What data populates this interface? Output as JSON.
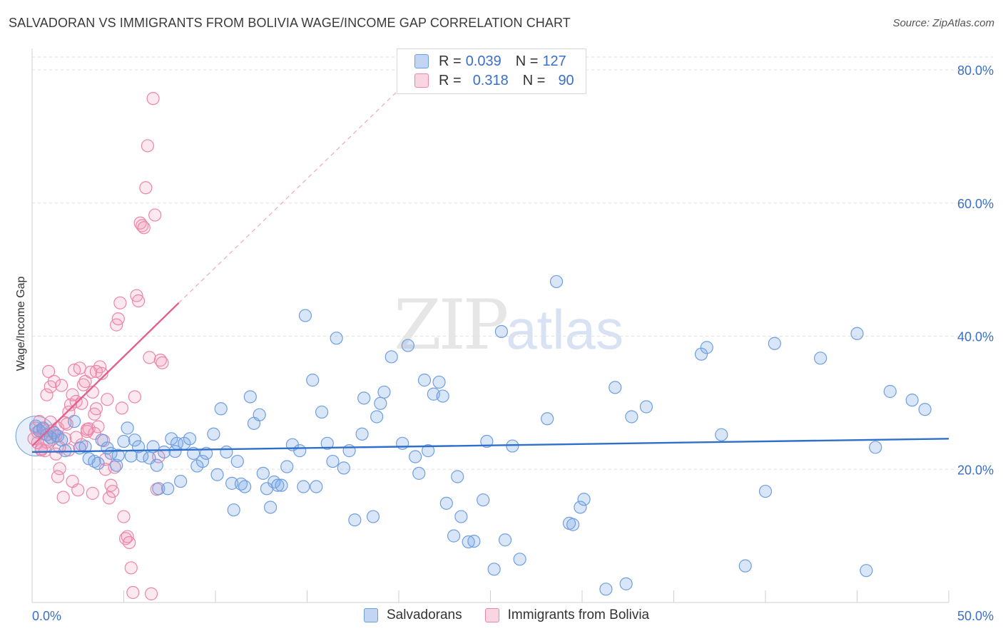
{
  "title": "SALVADORAN VS IMMIGRANTS FROM BOLIVIA WAGE/INCOME GAP CORRELATION CHART",
  "source": "Source: ZipAtlas.com",
  "watermark": {
    "zip": "ZIP",
    "atlas": "atlas"
  },
  "colors": {
    "blue": "#6f9ee0",
    "blue_fill": "rgba(120,165,230,0.28)",
    "blue_line": "#2f6fcc",
    "pink": "#ec85a8",
    "pink_fill": "rgba(240,150,180,0.22)",
    "pink_line": "#e0608f",
    "axis_text": "#3a6fc9",
    "grid": "#e2e2e2"
  },
  "legend_top": {
    "rows": [
      {
        "r_label": "R =",
        "r_value": "0.039",
        "n_label": "N =",
        "n_value": "127"
      },
      {
        "r_label": "R =",
        "r_value": "0.318",
        "n_label": "N =",
        "n_value": "90"
      }
    ]
  },
  "legend_bottom": [
    "Salvadorans",
    "Immigrants from Bolivia"
  ],
  "chart_data": {
    "type": "scatter",
    "title": "SALVADORAN VS IMMIGRANTS FROM BOLIVIA WAGE/INCOME GAP CORRELATION CHART",
    "xlabel": "",
    "ylabel": "Wage/Income Gap",
    "xlim": [
      0,
      50
    ],
    "ylim": [
      0,
      80
    ],
    "x_tick_labels": [
      "0.0%",
      "50.0%"
    ],
    "y_tick_labels": [
      "20.0%",
      "40.0%",
      "60.0%",
      "80.0%"
    ],
    "y_ticks": [
      20,
      40,
      60,
      80
    ],
    "grid": true,
    "legend": "top-center",
    "series": [
      {
        "name": "Salvadorans",
        "R": 0.039,
        "N": 127,
        "trend": {
          "x": [
            0,
            50
          ],
          "y": [
            22.6,
            24.6
          ]
        },
        "points": [
          [
            0.2,
            26.5
          ],
          [
            0.4,
            25.8
          ],
          [
            0.6,
            26.2
          ],
          [
            0.8,
            25.2
          ],
          [
            1.0,
            24.8
          ],
          [
            1.2,
            25.5
          ],
          [
            1.4,
            25.0
          ],
          [
            1.6,
            24.4
          ],
          [
            1.8,
            22.8
          ],
          [
            2.3,
            27.2
          ],
          [
            2.6,
            23.2
          ],
          [
            2.9,
            23.4
          ],
          [
            3.1,
            21.6
          ],
          [
            3.4,
            21.2
          ],
          [
            3.6,
            20.9
          ],
          [
            3.8,
            24.4
          ],
          [
            4.1,
            23.2
          ],
          [
            4.3,
            22.4
          ],
          [
            4.6,
            20.6
          ],
          [
            4.7,
            22.1
          ],
          [
            5.0,
            24.2
          ],
          [
            5.2,
            26.2
          ],
          [
            5.4,
            22.0
          ],
          [
            5.6,
            24.4
          ],
          [
            5.8,
            23.4
          ],
          [
            6.0,
            22.0
          ],
          [
            6.4,
            21.7
          ],
          [
            6.6,
            23.4
          ],
          [
            6.8,
            20.6
          ],
          [
            6.9,
            17.1
          ],
          [
            7.2,
            22.6
          ],
          [
            7.4,
            17.1
          ],
          [
            7.6,
            24.6
          ],
          [
            7.8,
            22.7
          ],
          [
            7.9,
            23.9
          ],
          [
            8.1,
            18.2
          ],
          [
            8.3,
            23.9
          ],
          [
            8.6,
            24.6
          ],
          [
            8.8,
            22.4
          ],
          [
            9.0,
            20.5
          ],
          [
            9.3,
            21.2
          ],
          [
            9.5,
            22.4
          ],
          [
            9.9,
            25.3
          ],
          [
            10.1,
            19.2
          ],
          [
            10.3,
            29.1
          ],
          [
            10.6,
            22.6
          ],
          [
            10.9,
            17.9
          ],
          [
            11.0,
            13.9
          ],
          [
            11.2,
            21.2
          ],
          [
            11.4,
            17.8
          ],
          [
            11.6,
            17.4
          ],
          [
            11.9,
            30.9
          ],
          [
            12.1,
            26.9
          ],
          [
            12.4,
            28.2
          ],
          [
            12.6,
            19.4
          ],
          [
            12.8,
            17.1
          ],
          [
            13.0,
            14.3
          ],
          [
            13.2,
            18.1
          ],
          [
            13.4,
            17.6
          ],
          [
            13.6,
            17.6
          ],
          [
            13.9,
            20.4
          ],
          [
            14.2,
            23.7
          ],
          [
            14.6,
            22.8
          ],
          [
            14.8,
            17.4
          ],
          [
            14.9,
            43.1
          ],
          [
            15.3,
            33.4
          ],
          [
            15.5,
            17.4
          ],
          [
            15.8,
            28.6
          ],
          [
            16.1,
            23.9
          ],
          [
            16.4,
            21.2
          ],
          [
            16.6,
            39.7
          ],
          [
            17.0,
            20.2
          ],
          [
            17.3,
            22.8
          ],
          [
            17.6,
            12.4
          ],
          [
            18.0,
            25.3
          ],
          [
            18.1,
            30.7
          ],
          [
            18.6,
            12.9
          ],
          [
            18.8,
            27.9
          ],
          [
            19.0,
            29.9
          ],
          [
            19.2,
            31.6
          ],
          [
            19.6,
            36.9
          ],
          [
            20.2,
            23.9
          ],
          [
            20.5,
            38.6
          ],
          [
            20.9,
            21.9
          ],
          [
            21.1,
            19.4
          ],
          [
            21.4,
            33.4
          ],
          [
            21.6,
            22.8
          ],
          [
            21.9,
            31.3
          ],
          [
            22.2,
            33.1
          ],
          [
            22.4,
            31.0
          ],
          [
            22.6,
            14.9
          ],
          [
            23.0,
            10.0
          ],
          [
            23.2,
            18.9
          ],
          [
            23.4,
            12.9
          ],
          [
            23.8,
            9.1
          ],
          [
            24.1,
            9.2
          ],
          [
            24.6,
            15.4
          ],
          [
            24.8,
            24.2
          ],
          [
            25.2,
            5.0
          ],
          [
            25.6,
            40.7
          ],
          [
            25.8,
            9.4
          ],
          [
            26.2,
            23.5
          ],
          [
            26.6,
            6.5
          ],
          [
            28.6,
            48.2
          ],
          [
            28.1,
            27.6
          ],
          [
            29.3,
            11.9
          ],
          [
            29.5,
            11.7
          ],
          [
            29.9,
            14.3
          ],
          [
            30.1,
            15.5
          ],
          [
            31.3,
            2.0
          ],
          [
            31.8,
            32.3
          ],
          [
            32.4,
            2.8
          ],
          [
            32.7,
            27.9
          ],
          [
            33.5,
            29.4
          ],
          [
            36.5,
            37.3
          ],
          [
            36.8,
            38.3
          ],
          [
            37.6,
            25.2
          ],
          [
            38.9,
            5.5
          ],
          [
            40.0,
            16.7
          ],
          [
            40.5,
            38.9
          ],
          [
            43.0,
            36.7
          ],
          [
            45.0,
            40.4
          ],
          [
            45.5,
            4.8
          ],
          [
            46.0,
            23.3
          ],
          [
            46.8,
            31.7
          ],
          [
            48.0,
            30.4
          ],
          [
            48.7,
            29.0
          ]
        ]
      },
      {
        "name": "Immigrants from Bolivia",
        "R": 0.318,
        "N": 90,
        "trend": {
          "x": [
            0,
            8
          ],
          "y": [
            23.5,
            45.0
          ]
        },
        "trend_extension": {
          "x": [
            8,
            20
          ],
          "y": [
            45.0,
            77.0
          ]
        },
        "points": [
          [
            0.1,
            24.6
          ],
          [
            0.2,
            26.2
          ],
          [
            0.3,
            24.0
          ],
          [
            0.4,
            27.2
          ],
          [
            0.5,
            23.1
          ],
          [
            0.6,
            25.4
          ],
          [
            0.7,
            22.8
          ],
          [
            0.8,
            31.2
          ],
          [
            0.9,
            34.7
          ],
          [
            1.0,
            32.4
          ],
          [
            1.0,
            27.1
          ],
          [
            1.1,
            25.8
          ],
          [
            1.2,
            33.2
          ],
          [
            1.3,
            22.3
          ],
          [
            1.4,
            26.2
          ],
          [
            1.5,
            20.1
          ],
          [
            1.6,
            32.6
          ],
          [
            1.7,
            15.8
          ],
          [
            1.8,
            24.6
          ],
          [
            1.9,
            26.8
          ],
          [
            2.0,
            22.9
          ],
          [
            2.1,
            29.7
          ],
          [
            2.2,
            18.2
          ],
          [
            2.3,
            34.9
          ],
          [
            2.4,
            30.2
          ],
          [
            2.5,
            16.9
          ],
          [
            2.6,
            35.2
          ],
          [
            2.7,
            29.9
          ],
          [
            2.8,
            32.7
          ],
          [
            2.9,
            33.2
          ],
          [
            3.0,
            25.7
          ],
          [
            3.1,
            26.1
          ],
          [
            3.2,
            34.6
          ],
          [
            3.3,
            31.6
          ],
          [
            3.4,
            28.3
          ],
          [
            3.5,
            29.1
          ],
          [
            3.6,
            26.4
          ],
          [
            3.7,
            35.4
          ],
          [
            3.8,
            34.4
          ],
          [
            3.9,
            24.3
          ],
          [
            4.0,
            20.0
          ],
          [
            4.1,
            30.5
          ],
          [
            4.2,
            15.7
          ],
          [
            4.3,
            17.6
          ],
          [
            4.4,
            16.7
          ],
          [
            4.5,
            20.3
          ],
          [
            4.6,
            41.7
          ],
          [
            4.7,
            42.6
          ],
          [
            4.8,
            45.0
          ],
          [
            4.9,
            29.2
          ],
          [
            5.0,
            12.9
          ],
          [
            5.1,
            9.6
          ],
          [
            5.2,
            9.9
          ],
          [
            5.3,
            9.0
          ],
          [
            5.4,
            5.2
          ],
          [
            5.5,
            1.5
          ],
          [
            5.6,
            30.9
          ],
          [
            5.7,
            46.1
          ],
          [
            5.8,
            45.3
          ],
          [
            5.9,
            57.0
          ],
          [
            6.0,
            56.6
          ],
          [
            6.1,
            56.3
          ],
          [
            6.2,
            62.3
          ],
          [
            6.3,
            68.6
          ],
          [
            6.4,
            36.8
          ],
          [
            6.5,
            1.3
          ],
          [
            6.6,
            75.7
          ],
          [
            6.7,
            58.2
          ],
          [
            6.8,
            17.0
          ],
          [
            6.9,
            21.9
          ],
          [
            7.0,
            36.4
          ],
          [
            7.1,
            36.0
          ],
          [
            3.5,
            34.7
          ],
          [
            2.2,
            31.2
          ],
          [
            3.4,
            25.4
          ],
          [
            1.5,
            23.3
          ],
          [
            0.3,
            25.6
          ],
          [
            0.6,
            26.0
          ],
          [
            1.1,
            24.5
          ],
          [
            1.3,
            25.1
          ],
          [
            0.8,
            24.1
          ],
          [
            2.7,
            23.7
          ],
          [
            3.0,
            26.0
          ],
          [
            1.8,
            27.0
          ],
          [
            2.4,
            24.8
          ],
          [
            4.0,
            21.5
          ],
          [
            3.3,
            16.4
          ],
          [
            2.0,
            28.6
          ],
          [
            1.4,
            18.9
          ],
          [
            0.5,
            22.9
          ]
        ]
      }
    ]
  }
}
